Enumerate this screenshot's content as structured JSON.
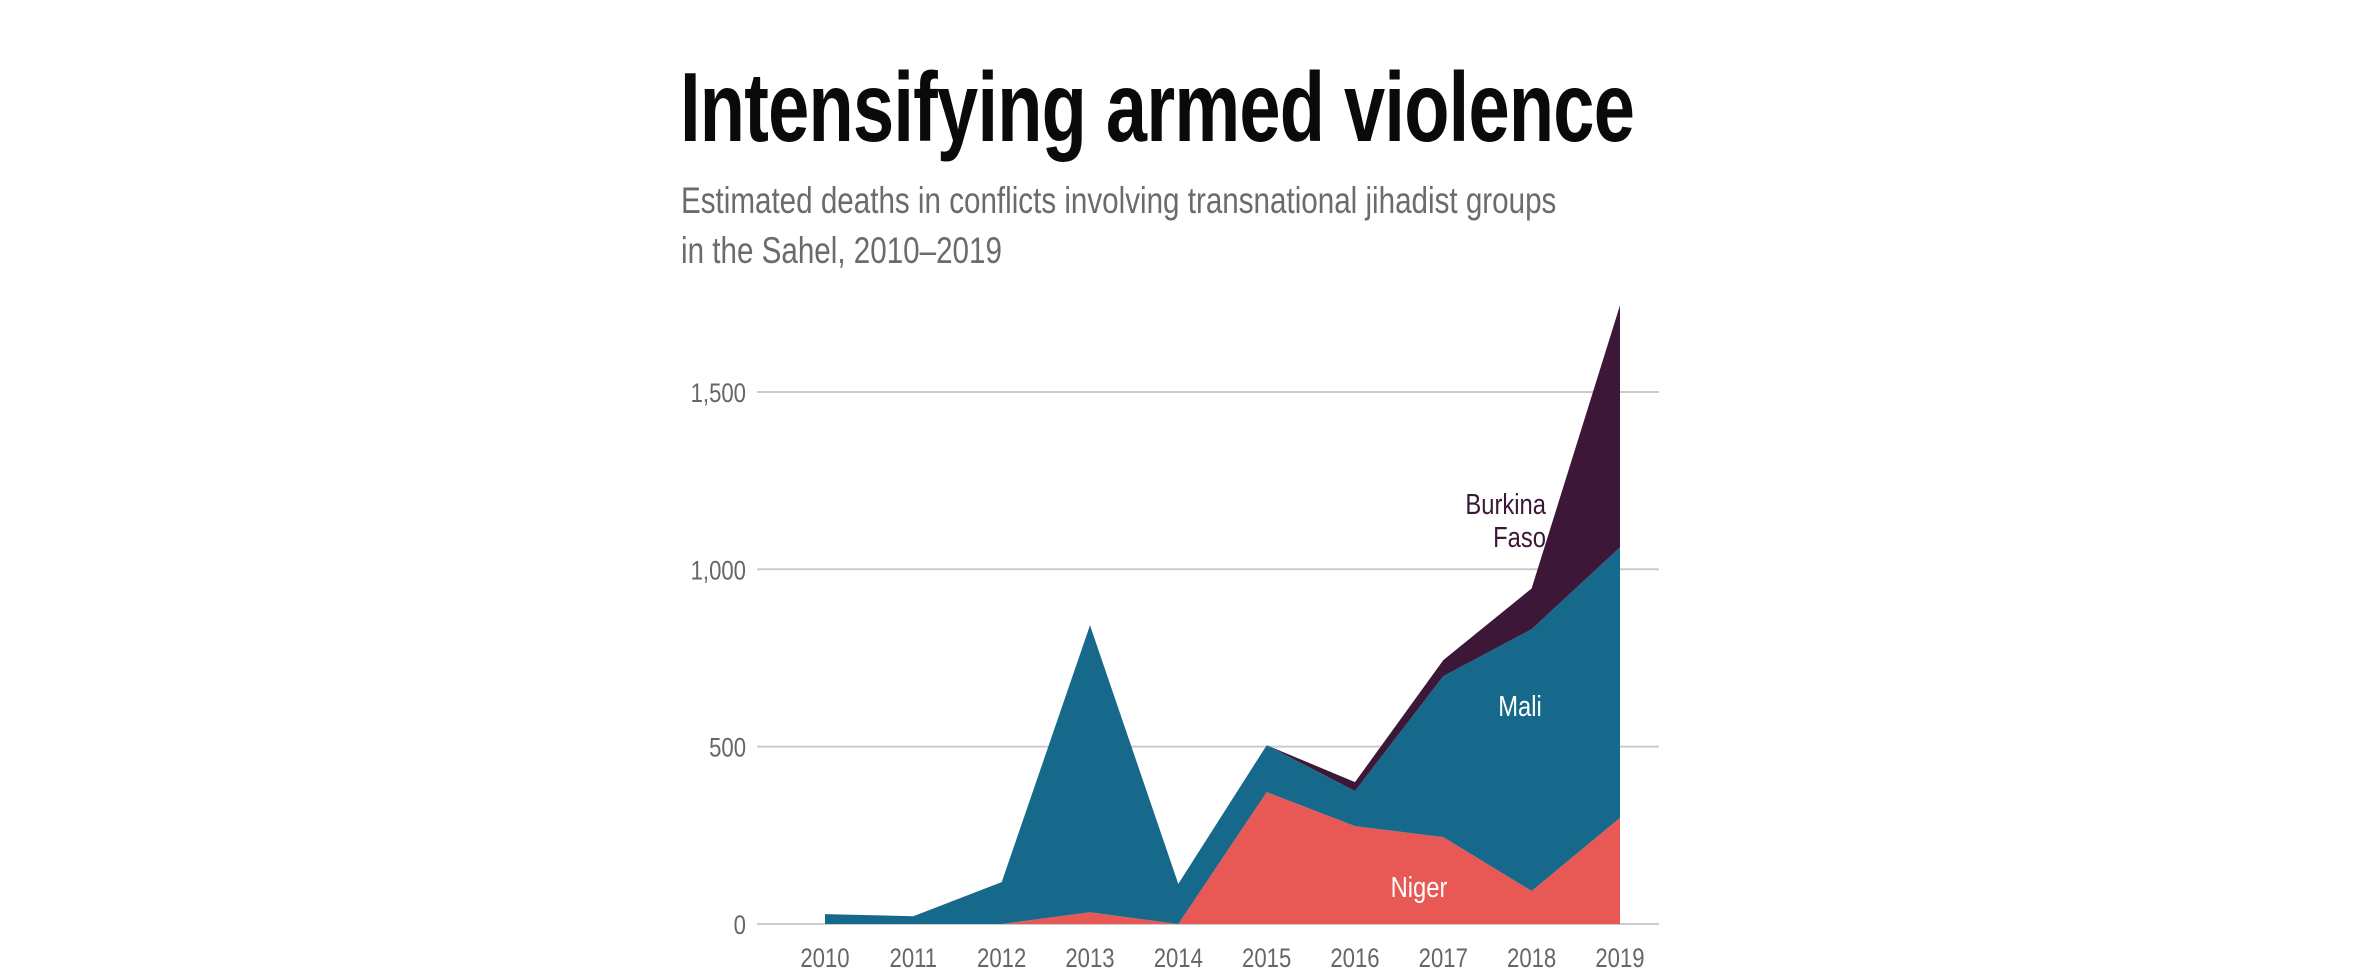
{
  "header": {
    "title": "Intensifying armed violence",
    "subtitle_line1": "Estimated deaths in conflicts involving transnational jihadist groups",
    "subtitle_line2": "in the Sahel, 2010–2019"
  },
  "chart_data": {
    "type": "area",
    "stacked": true,
    "title": "Intensifying armed violence",
    "subtitle": "Estimated deaths in conflicts involving transnational jihadist groups in the Sahel, 2010–2019",
    "xlabel": "",
    "ylabel": "",
    "x": [
      "2010",
      "2011",
      "2012",
      "2013",
      "2014",
      "2015",
      "2016",
      "2017",
      "2018",
      "2019"
    ],
    "ylim": [
      0,
      1750
    ],
    "yticks": [
      0,
      500,
      1000,
      1500
    ],
    "ytick_labels": [
      "0",
      "500",
      "1,000",
      "1,500"
    ],
    "grid": true,
    "legend": "inline-labels",
    "series": [
      {
        "name": "Niger",
        "color": "#e85955",
        "label_color": "#ffffff",
        "values": [
          0,
          0,
          0,
          33,
          0,
          372,
          276,
          245,
          93,
          299
        ]
      },
      {
        "name": "Mali",
        "color": "#17698c",
        "label_color": "#ffffff",
        "values": [
          28,
          22,
          118,
          809,
          113,
          132,
          99,
          454,
          738,
          763
        ]
      },
      {
        "name": "Burkina Faso",
        "color": "#3c1738",
        "label_color": "#3c1738",
        "label_lines": [
          "Burkina",
          "Faso"
        ],
        "values": [
          0,
          0,
          0,
          0,
          0,
          0,
          25,
          45,
          115,
          682
        ]
      }
    ],
    "colors": {
      "grid": "#cccccc",
      "tick_text": "#666666"
    }
  }
}
